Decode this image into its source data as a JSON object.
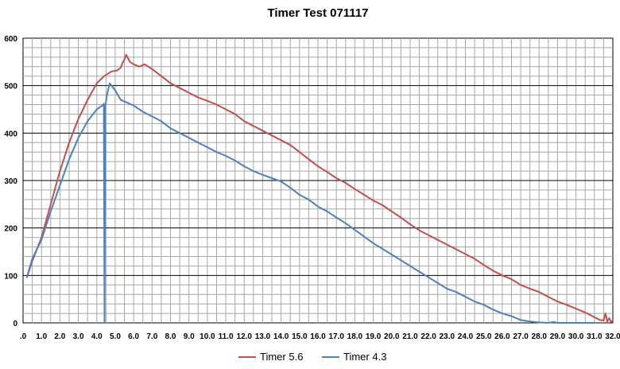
{
  "chart_data": {
    "type": "line",
    "title": "Timer Test 071117",
    "xlabel": "",
    "ylabel": "",
    "xlim": [
      0,
      32
    ],
    "ylim": [
      0,
      600
    ],
    "x_ticks": [
      ".0",
      "1.0",
      "2.0",
      "3.0",
      "4.0",
      "5.0",
      "6.0",
      "7.0",
      "8.0",
      "9.0",
      "10.0",
      "11.0",
      "12.0",
      "13.0",
      "14.0",
      "15.0",
      "16.0",
      "17.0",
      "18.0",
      "19.0",
      "20.0",
      "21.0",
      "22.0",
      "23.0",
      "24.0",
      "25.0",
      "26.0",
      "27.0",
      "28.0",
      "29.0",
      "30.0",
      "31.0",
      "32.0"
    ],
    "y_ticks": [
      "0",
      "100",
      "200",
      "300",
      "400",
      "500",
      "600"
    ],
    "grid": true,
    "legend_position": "bottom",
    "series": [
      {
        "name": "Timer 5.6",
        "color": "#c0504d",
        "x": [
          0.2,
          0.5,
          1.0,
          1.5,
          2.0,
          2.5,
          3.0,
          3.5,
          4.0,
          4.4,
          4.8,
          5.1,
          5.3,
          5.4,
          5.5,
          5.6,
          5.8,
          6.0,
          6.3,
          6.6,
          7.0,
          7.5,
          8.0,
          8.5,
          9.0,
          9.5,
          10.0,
          10.5,
          11.0,
          11.5,
          12.0,
          12.5,
          13.0,
          13.5,
          14.0,
          14.5,
          15.0,
          15.5,
          16.0,
          16.5,
          17.0,
          17.5,
          18.0,
          18.5,
          19.0,
          19.5,
          20.0,
          20.5,
          21.0,
          21.5,
          22.0,
          22.5,
          23.0,
          23.5,
          24.0,
          24.5,
          25.0,
          25.5,
          26.0,
          26.5,
          27.0,
          27.5,
          28.0,
          28.5,
          29.0,
          29.5,
          30.0,
          30.5,
          31.0,
          31.3,
          31.5,
          31.6,
          31.7,
          31.8,
          31.9,
          32.0
        ],
        "values": [
          95,
          130,
          180,
          250,
          320,
          380,
          430,
          470,
          505,
          520,
          530,
          532,
          538,
          548,
          555,
          565,
          550,
          545,
          540,
          545,
          535,
          520,
          505,
          495,
          485,
          475,
          468,
          460,
          450,
          440,
          425,
          415,
          405,
          395,
          385,
          375,
          360,
          345,
          330,
          318,
          305,
          295,
          282,
          270,
          258,
          248,
          235,
          222,
          208,
          195,
          185,
          175,
          165,
          155,
          145,
          135,
          122,
          110,
          100,
          92,
          80,
          72,
          65,
          55,
          45,
          38,
          30,
          22,
          12,
          6,
          5,
          20,
          3,
          10,
          2,
          5
        ]
      },
      {
        "name": "Timer 4.3",
        "color": "#4f81bd",
        "x": [
          0.2,
          0.5,
          1.0,
          1.5,
          2.0,
          2.5,
          3.0,
          3.5,
          4.0,
          4.3,
          4.38,
          4.42,
          4.46,
          4.55,
          4.7,
          5.0,
          5.3,
          5.6,
          6.0,
          6.5,
          7.0,
          7.5,
          8.0,
          8.5,
          9.0,
          9.5,
          10.0,
          10.5,
          11.0,
          11.5,
          12.0,
          12.5,
          13.0,
          13.5,
          14.0,
          14.5,
          15.0,
          15.5,
          16.0,
          16.5,
          17.0,
          17.5,
          18.0,
          18.5,
          19.0,
          19.5,
          20.0,
          20.5,
          21.0,
          21.5,
          22.0,
          22.5,
          23.0,
          23.5,
          24.0,
          24.5,
          25.0,
          25.5,
          26.0,
          26.5,
          27.0,
          27.5,
          28.0,
          28.5,
          28.8,
          29.0,
          29.5,
          30.0,
          30.5,
          31.0
        ],
        "values": [
          95,
          135,
          175,
          235,
          290,
          345,
          390,
          425,
          450,
          458,
          462,
          0,
          455,
          480,
          505,
          490,
          470,
          465,
          458,
          445,
          435,
          425,
          410,
          400,
          390,
          380,
          370,
          360,
          352,
          342,
          330,
          320,
          312,
          305,
          298,
          285,
          270,
          260,
          245,
          235,
          222,
          210,
          196,
          182,
          168,
          156,
          144,
          132,
          120,
          108,
          96,
          84,
          72,
          65,
          55,
          45,
          38,
          28,
          20,
          14,
          6,
          3,
          1,
          0,
          2,
          0,
          0,
          0,
          0,
          0
        ]
      }
    ]
  }
}
